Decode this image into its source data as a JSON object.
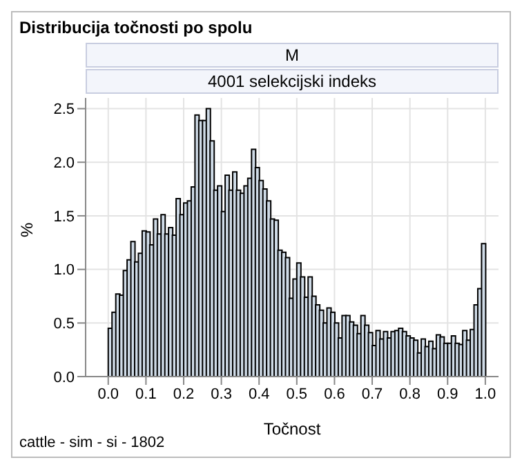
{
  "chart_data": {
    "type": "histogram",
    "title": "Distribucija točnosti po spolu",
    "subtitle": "M",
    "annotations": [
      "4001 selekcijski indeks",
      "cattle - sim - si - 1802"
    ],
    "xlabel": "Točnost",
    "ylabel": "%",
    "color": "#cfdbe7",
    "bins": [
      0,
      0.01,
      0.02,
      0.03,
      0.04,
      0.05,
      0.06,
      0.07,
      0.08,
      0.09,
      0.1,
      0.11,
      0.12,
      0.13,
      0.14,
      0.15,
      0.16,
      0.17,
      0.18,
      0.19,
      0.2,
      0.21,
      0.22,
      0.23,
      0.24,
      0.25,
      0.26,
      0.27,
      0.28,
      0.29,
      0.3,
      0.31,
      0.32,
      0.33,
      0.34,
      0.35,
      0.36,
      0.37,
      0.38,
      0.39,
      0.4,
      0.41,
      0.42,
      0.43,
      0.44,
      0.45,
      0.46,
      0.47,
      0.48,
      0.49,
      0.5,
      0.51,
      0.52,
      0.53,
      0.54,
      0.55,
      0.56,
      0.57,
      0.58,
      0.59,
      0.6,
      0.61,
      0.62,
      0.63,
      0.64,
      0.65,
      0.66,
      0.67,
      0.68,
      0.69,
      0.7,
      0.71,
      0.72,
      0.73,
      0.74,
      0.75,
      0.76,
      0.77,
      0.78,
      0.79,
      0.8,
      0.81,
      0.82,
      0.83,
      0.84,
      0.85,
      0.86,
      0.87,
      0.88,
      0.89,
      0.9,
      0.91,
      0.92,
      0.93,
      0.94,
      0.95,
      0.96,
      0.97,
      0.98,
      0.99,
      1
    ],
    "values": [
      0.45,
      0.6,
      0.77,
      0.76,
      0.99,
      1.09,
      1.26,
      1.07,
      1.15,
      1.36,
      1.35,
      1.23,
      1.47,
      1.33,
      1.51,
      1.33,
      1.39,
      1.32,
      1.66,
      1.51,
      1.62,
      1.64,
      1.77,
      2.44,
      2.39,
      2.39,
      2.5,
      2.2,
      1.74,
      1.78,
      1.54,
      1.88,
      1.74,
      1.91,
      1.74,
      1.71,
      1.78,
      1.85,
      2.12,
      1.95,
      1.83,
      1.75,
      1.64,
      1.47,
      1.46,
      1.18,
      1.16,
      1.11,
      0.73,
      0.91,
      1.06,
      0.93,
      0.74,
      0.93,
      0.75,
      0.67,
      0.62,
      0.5,
      0.64,
      0.6,
      0.5,
      0.36,
      0.57,
      0.57,
      0.51,
      0.48,
      0.4,
      0.57,
      0.48,
      0.41,
      0.29,
      0.43,
      0.35,
      0.42,
      0.36,
      0.42,
      0.43,
      0.45,
      0.42,
      0.38,
      0.36,
      0.34,
      0.22,
      0.35,
      0.28,
      0.33,
      0.26,
      0.39,
      0.37,
      0.31,
      0.31,
      0.38,
      0.31,
      0.3,
      0.43,
      0.34,
      0.44,
      0.67,
      0.82,
      1.24
    ],
    "xlim": [
      -0.06,
      1.035
    ],
    "xticks": [
      {
        "value": 0,
        "label": "0.0"
      },
      0.1,
      0.2,
      0.3,
      0.4,
      0.5,
      0.6,
      0.7,
      0.8,
      0.9,
      {
        "value": 1,
        "label": "1.0"
      }
    ],
    "ylim": [
      0,
      2.6
    ],
    "yticks": [
      {
        "value": 0,
        "label": "0.0"
      },
      0.5,
      {
        "value": 1,
        "label": "1.0"
      },
      1.5,
      {
        "value": 2,
        "label": "2.0"
      },
      2.5
    ],
    "grid": true
  }
}
